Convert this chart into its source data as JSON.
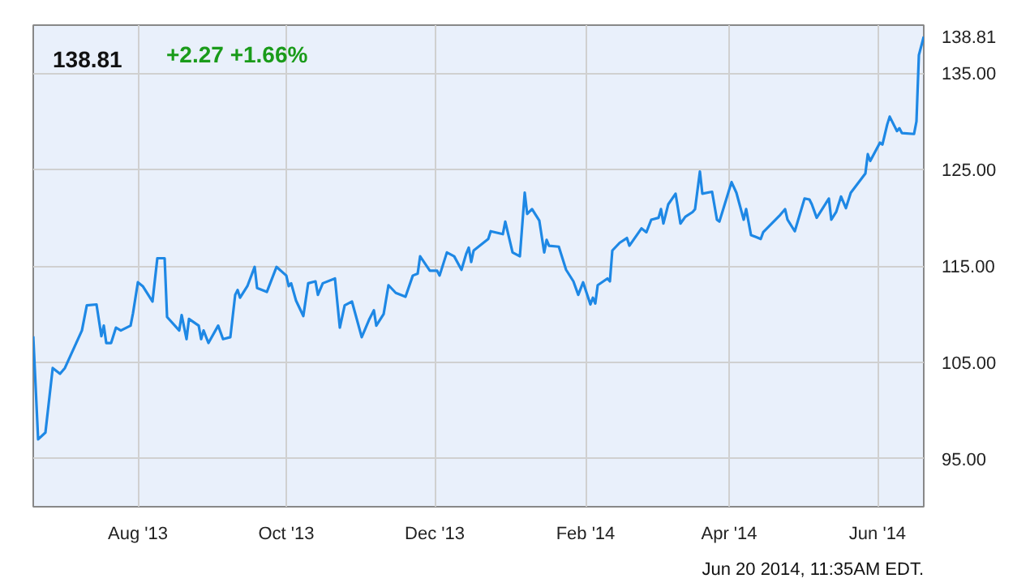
{
  "chart_data": {
    "type": "line",
    "title": "138.81",
    "subtitle": "+2.27  +1.66%",
    "annotations": [
      "Jun 20 2014, 11:35AM EDT."
    ],
    "x": [
      "2013-06-19",
      "2013-06-21",
      "2013-06-24",
      "2013-06-27",
      "2013-06-30",
      "2013-07-02",
      "2013-07-09",
      "2013-07-11",
      "2013-07-15",
      "2013-07-17",
      "2013-07-18",
      "2013-07-19",
      "2013-07-21",
      "2013-07-23",
      "2013-07-25",
      "2013-07-29",
      "2013-07-30",
      "2013-08-01",
      "2013-08-03",
      "2013-08-07",
      "2013-08-09",
      "2013-08-12",
      "2013-08-13",
      "2013-08-18",
      "2013-08-19",
      "2013-08-21",
      "2013-08-22",
      "2013-08-26",
      "2013-08-27",
      "2013-08-28",
      "2013-08-30",
      "2013-09-03",
      "2013-09-05",
      "2013-09-08",
      "2013-09-10",
      "2013-09-11",
      "2013-09-12",
      "2013-09-15",
      "2013-09-18",
      "2013-09-19",
      "2013-09-23",
      "2013-09-27",
      "2013-10-01",
      "2013-10-02",
      "2013-10-03",
      "2013-10-05",
      "2013-10-08",
      "2013-10-10",
      "2013-10-13",
      "2013-10-14",
      "2013-10-16",
      "2013-10-21",
      "2013-10-23",
      "2013-10-25",
      "2013-10-28",
      "2013-11-01",
      "2013-11-04",
      "2013-11-06",
      "2013-11-07",
      "2013-11-10",
      "2013-11-12",
      "2013-11-15",
      "2013-11-19",
      "2013-11-22",
      "2013-11-24",
      "2013-11-25",
      "2013-11-29",
      "2013-12-02",
      "2013-12-03",
      "2013-12-06",
      "2013-12-09",
      "2013-12-12",
      "2013-12-14",
      "2013-12-15",
      "2013-12-16",
      "2013-12-17",
      "2013-12-23",
      "2013-12-24",
      "2013-12-29",
      "2013-12-30",
      "2014-01-02",
      "2014-01-05",
      "2014-01-07",
      "2014-01-08",
      "2014-01-10",
      "2014-01-13",
      "2014-01-15",
      "2014-01-16",
      "2014-01-17",
      "2014-01-21",
      "2014-01-22",
      "2014-01-24",
      "2014-01-27",
      "2014-01-29",
      "2014-01-31",
      "2014-02-03",
      "2014-02-04",
      "2014-02-05",
      "2014-02-06",
      "2014-02-10",
      "2014-02-11",
      "2014-02-12",
      "2014-02-15",
      "2014-02-18",
      "2014-02-19",
      "2014-02-24",
      "2014-02-26",
      "2014-02-28",
      "2014-03-03",
      "2014-03-04",
      "2014-03-05",
      "2014-03-07",
      "2014-03-10",
      "2014-03-12",
      "2014-03-14",
      "2014-03-17",
      "2014-03-18",
      "2014-03-20",
      "2014-03-21",
      "2014-03-25",
      "2014-03-27",
      "2014-03-28",
      "2014-04-02",
      "2014-04-04",
      "2014-04-07",
      "2014-04-08",
      "2014-04-10",
      "2014-04-12",
      "2014-04-14",
      "2014-04-15",
      "2014-04-22",
      "2014-04-24",
      "2014-04-25",
      "2014-04-28",
      "2014-05-02",
      "2014-05-04",
      "2014-05-05",
      "2014-05-07",
      "2014-05-12",
      "2014-05-13",
      "2014-05-15",
      "2014-05-17",
      "2014-05-19",
      "2014-05-21",
      "2014-05-27",
      "2014-05-28",
      "2014-05-29",
      "2014-06-02",
      "2014-06-03",
      "2014-06-05",
      "2014-06-06",
      "2014-06-09",
      "2014-06-10",
      "2014-06-11",
      "2014-06-16",
      "2014-06-17",
      "2014-06-18",
      "2014-06-20"
    ],
    "series": [
      {
        "color": "#1e88e5",
        "values": [
          107.7,
          97.0,
          97.7,
          104.4,
          103.8,
          104.4,
          108.3,
          110.9,
          111.0,
          107.7,
          108.8,
          107.0,
          107.0,
          108.6,
          108.3,
          108.8,
          110.1,
          113.3,
          112.9,
          111.3,
          115.8,
          115.8,
          109.7,
          108.3,
          109.9,
          107.4,
          109.5,
          108.8,
          107.4,
          108.3,
          107.0,
          108.8,
          107.4,
          107.6,
          112.0,
          112.5,
          111.7,
          112.9,
          114.9,
          112.7,
          112.3,
          114.9,
          114.0,
          112.9,
          113.2,
          111.4,
          109.8,
          113.2,
          113.4,
          112.0,
          113.2,
          113.7,
          108.6,
          110.9,
          111.3,
          107.6,
          109.4,
          110.4,
          108.8,
          110.0,
          113.0,
          112.2,
          111.8,
          114.0,
          114.2,
          116.0,
          114.5,
          114.5,
          114.0,
          116.4,
          116.0,
          114.6,
          116.3,
          116.9,
          115.4,
          116.6,
          117.8,
          118.6,
          118.3,
          119.6,
          116.4,
          116.0,
          122.6,
          120.4,
          120.9,
          119.7,
          116.4,
          117.7,
          117.1,
          117.0,
          116.2,
          114.6,
          113.4,
          112.0,
          113.3,
          111.0,
          111.7,
          111.1,
          113.0,
          113.7,
          113.4,
          116.6,
          117.4,
          117.9,
          117.1,
          118.9,
          118.5,
          119.8,
          120.0,
          120.9,
          119.4,
          121.4,
          122.5,
          119.4,
          120.1,
          120.6,
          120.9,
          124.8,
          122.5,
          122.7,
          119.8,
          119.6,
          123.7,
          122.6,
          119.8,
          120.9,
          118.2,
          118.0,
          117.8,
          118.5,
          120.3,
          120.9,
          119.8,
          118.6,
          122.0,
          121.9,
          121.4,
          120.0,
          122.0,
          119.8,
          120.6,
          122.2,
          121.0,
          122.6,
          124.6,
          126.6,
          125.9,
          127.8,
          127.6,
          129.7,
          130.5,
          129.0,
          129.3,
          128.8,
          128.7,
          130.0,
          136.9,
          138.81
        ],
        "value_labels": [
          null,
          null,
          null,
          null,
          null,
          null,
          null,
          null,
          null,
          null,
          null,
          null,
          null,
          null,
          null,
          null,
          null,
          null,
          null,
          null,
          null,
          null,
          null,
          null,
          null,
          null,
          null,
          null,
          null,
          null,
          null,
          null,
          null,
          null,
          null,
          null,
          null,
          null,
          null,
          null,
          null,
          null,
          null,
          null,
          null,
          null,
          null,
          null,
          null,
          null,
          null,
          null,
          null,
          null,
          null,
          null,
          null,
          null,
          null,
          null,
          null,
          null,
          null,
          null,
          null,
          null,
          null,
          null,
          null,
          null,
          null,
          null,
          null,
          null,
          null,
          null,
          null,
          null,
          null,
          null,
          null,
          null,
          null,
          null,
          null,
          null,
          null,
          null,
          null,
          null,
          null,
          null,
          null,
          null,
          null,
          null,
          null,
          null,
          null,
          null,
          null,
          null,
          null,
          null,
          null,
          null,
          null,
          null,
          null,
          null,
          null,
          null,
          null,
          null,
          null,
          null,
          null,
          null,
          null,
          null,
          null,
          null,
          null,
          null,
          null,
          null,
          null,
          null,
          null,
          null,
          null,
          null,
          null,
          null,
          null,
          null,
          null,
          null,
          null,
          null,
          null,
          null,
          null,
          null,
          null,
          null,
          null,
          null,
          null,
          null,
          null,
          null,
          null,
          null,
          null,
          null,
          null,
          "138.81"
        ]
      }
    ],
    "xlim": [
      "2013-06-19",
      "2014-06-20"
    ],
    "xticks": [
      {
        "value": "2013-08-01",
        "label": "Aug '13"
      },
      {
        "value": "2013-10-01",
        "label": "Oct '13"
      },
      {
        "value": "2013-12-01",
        "label": "Dec '13"
      },
      {
        "value": "2014-02-01",
        "label": "Feb '14"
      },
      {
        "value": "2014-04-01",
        "label": "Apr '14"
      },
      {
        "value": "2014-06-01",
        "label": "Jun '14"
      }
    ],
    "ylim": [
      90,
      140
    ],
    "yticks": [
      {
        "value": 95,
        "label": "95.00"
      },
      {
        "value": 105,
        "label": "105.00"
      },
      {
        "value": 115,
        "label": "115.00"
      },
      {
        "value": 125,
        "label": "125.00"
      },
      {
        "value": 135,
        "label": "135.00"
      }
    ],
    "grid": true
  }
}
